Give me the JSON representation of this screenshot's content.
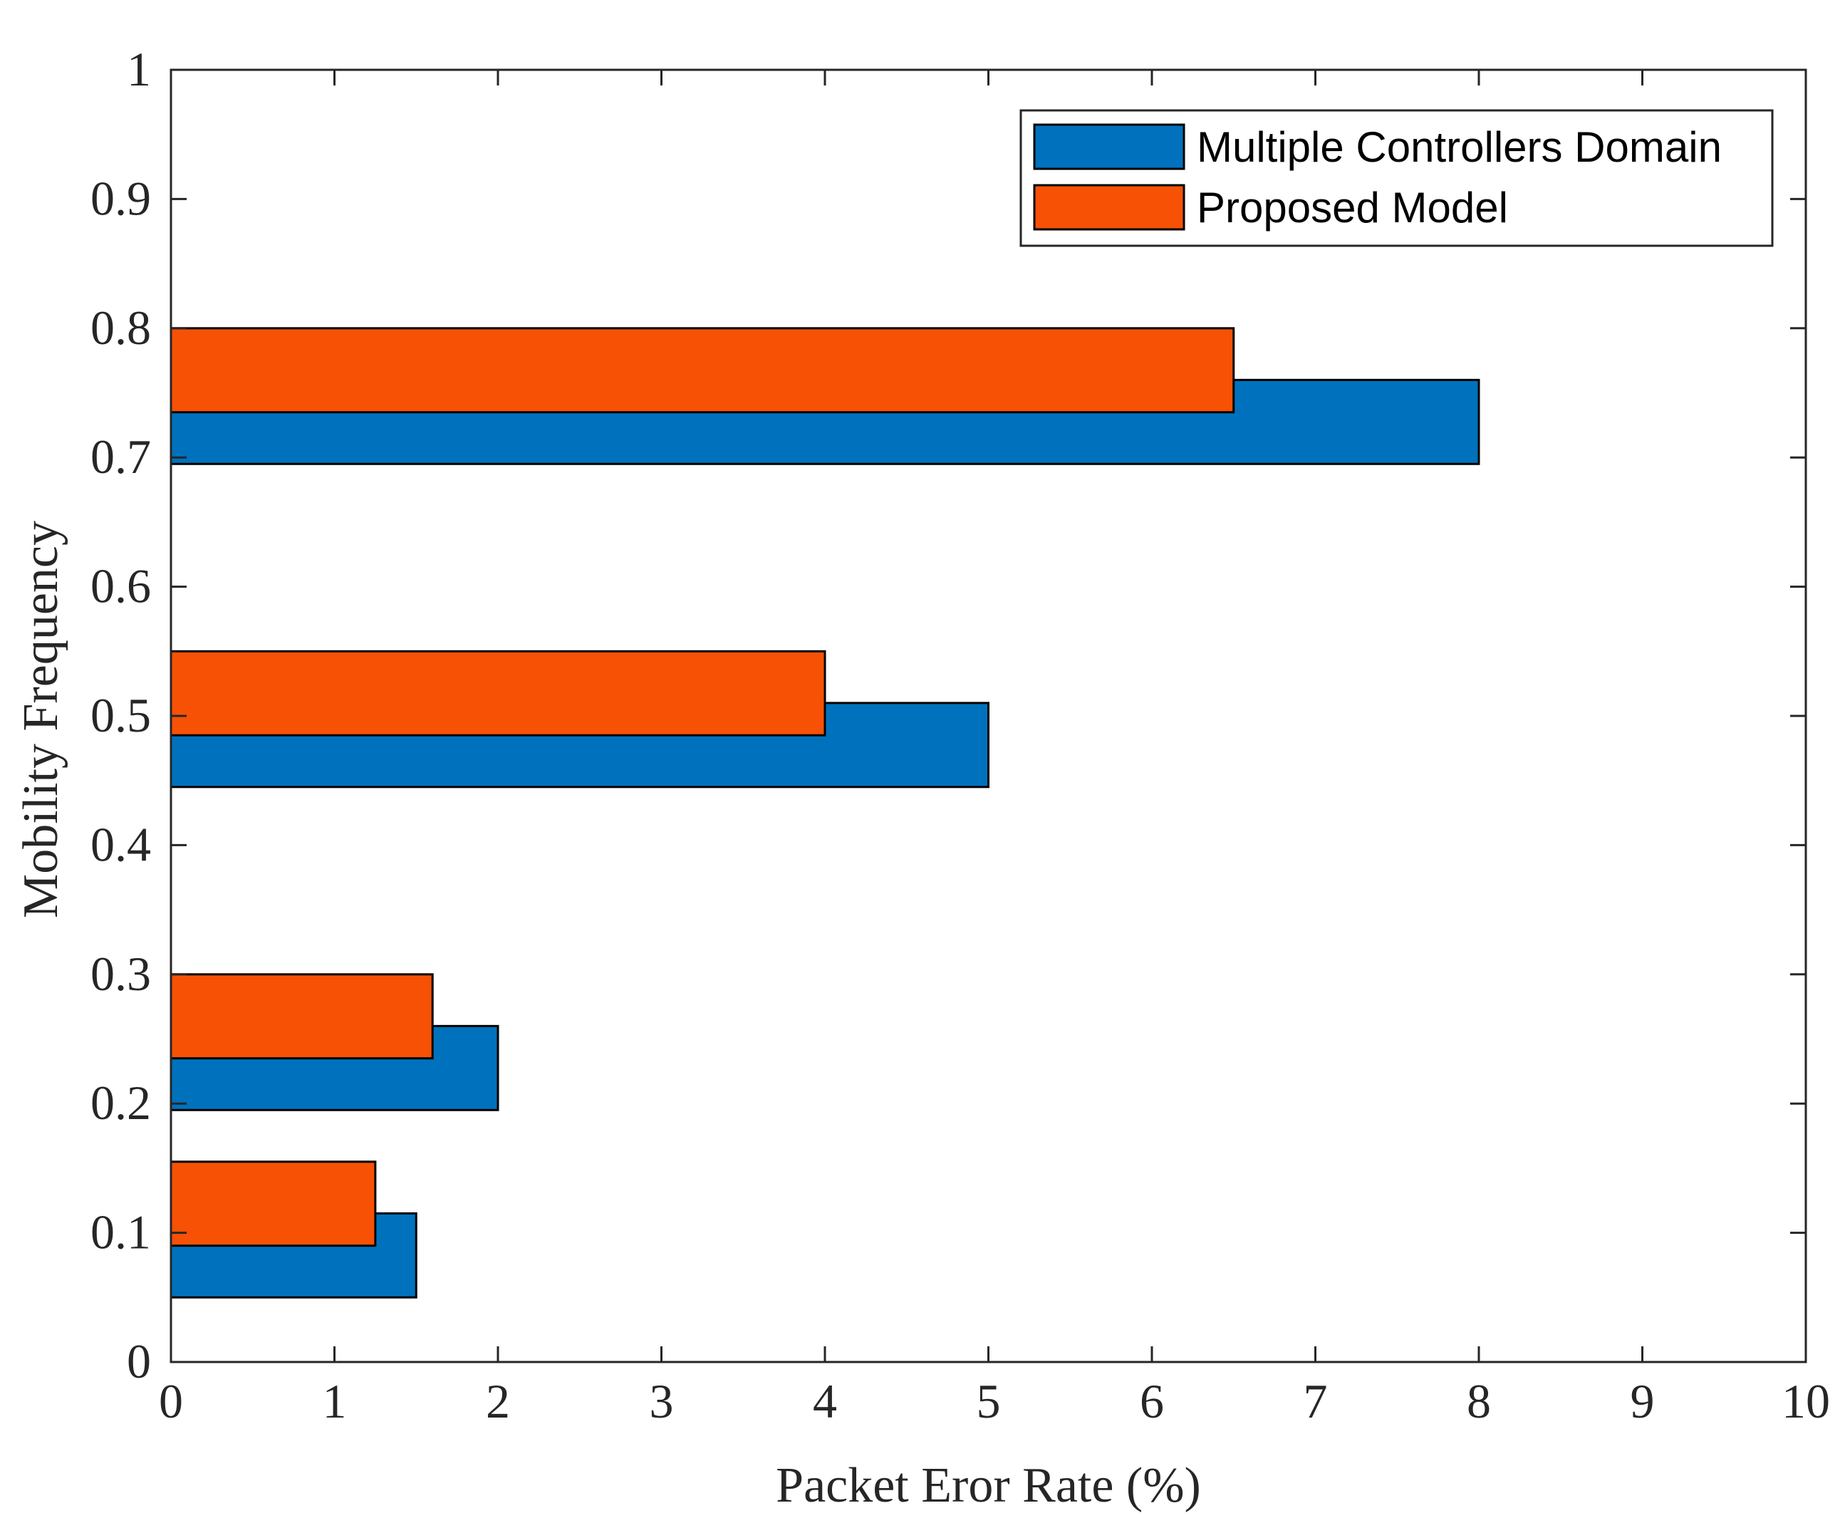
{
  "chart_data": {
    "type": "bar",
    "orientation": "horizontal",
    "title": "",
    "xlabel": "Packet Eror Rate (%)",
    "ylabel": "Mobility Frequency",
    "xlim": [
      0,
      10
    ],
    "ylim": [
      0,
      1
    ],
    "xticks": [
      "0",
      "1",
      "2",
      "3",
      "4",
      "5",
      "6",
      "7",
      "8",
      "9",
      "10"
    ],
    "yticks": [
      "0",
      "0.1",
      "0.2",
      "0.3",
      "0.4",
      "0.5",
      "0.6",
      "0.7",
      "0.8",
      "0.9",
      "1"
    ],
    "grid": false,
    "legend_position": "top-right",
    "categories": [
      0.1,
      0.25,
      0.5,
      0.75
    ],
    "series": [
      {
        "name": "Multiple Controllers Domain",
        "color": "#0072BD",
        "bars": [
          {
            "y_low": 0.05,
            "y_high": 0.115,
            "value": 1.5
          },
          {
            "y_low": 0.195,
            "y_high": 0.26,
            "value": 2.0
          },
          {
            "y_low": 0.445,
            "y_high": 0.51,
            "value": 5.0
          },
          {
            "y_low": 0.695,
            "y_high": 0.76,
            "value": 8.0
          }
        ]
      },
      {
        "name": "Proposed Model",
        "color": "#F75106",
        "bars": [
          {
            "y_low": 0.09,
            "y_high": 0.155,
            "value": 1.25
          },
          {
            "y_low": 0.235,
            "y_high": 0.3,
            "value": 1.6
          },
          {
            "y_low": 0.485,
            "y_high": 0.55,
            "value": 4.0
          },
          {
            "y_low": 0.735,
            "y_high": 0.8,
            "value": 6.5
          }
        ]
      }
    ]
  }
}
